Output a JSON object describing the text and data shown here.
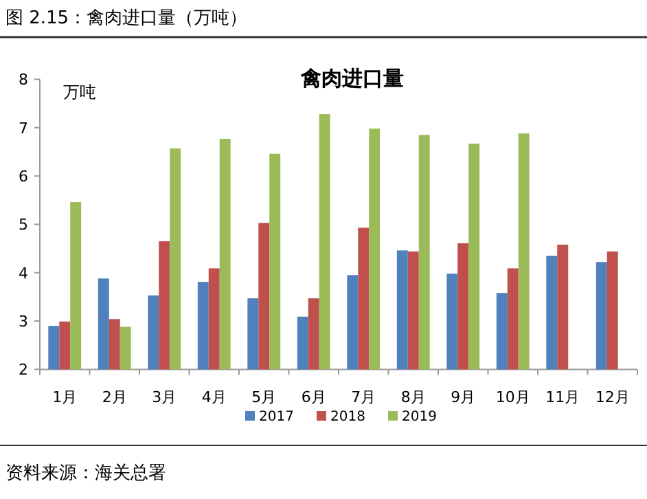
{
  "chart_data": {
    "type": "bar",
    "title": "禽肉进口量",
    "ylabel": "万吨",
    "annotations": [
      "图 2.15：禽肉进口量（万吨）",
      "资料来源：海关总署"
    ],
    "categories": [
      "1月",
      "2月",
      "3月",
      "4月",
      "5月",
      "6月",
      "7月",
      "8月",
      "9月",
      "10月",
      "11月",
      "12月"
    ],
    "series": [
      {
        "name": "2017",
        "color": "#4f81bd",
        "values": [
          2.9,
          3.88,
          3.53,
          3.81,
          3.47,
          3.09,
          3.95,
          4.46,
          3.98,
          3.58,
          4.35,
          4.22
        ]
      },
      {
        "name": "2018",
        "color": "#c0504d",
        "values": [
          2.99,
          3.04,
          4.65,
          4.09,
          5.03,
          3.47,
          4.93,
          4.44,
          4.61,
          4.09,
          4.58,
          4.44
        ]
      },
      {
        "name": "2019",
        "color": "#9bbb59",
        "values": [
          5.46,
          2.88,
          6.57,
          6.77,
          6.46,
          7.28,
          6.98,
          6.85,
          6.67,
          6.88,
          null,
          null
        ]
      }
    ],
    "ylim": [
      2,
      8
    ],
    "yticks": [
      2,
      3,
      4,
      5,
      6,
      7,
      8
    ],
    "legend": "bottom"
  }
}
